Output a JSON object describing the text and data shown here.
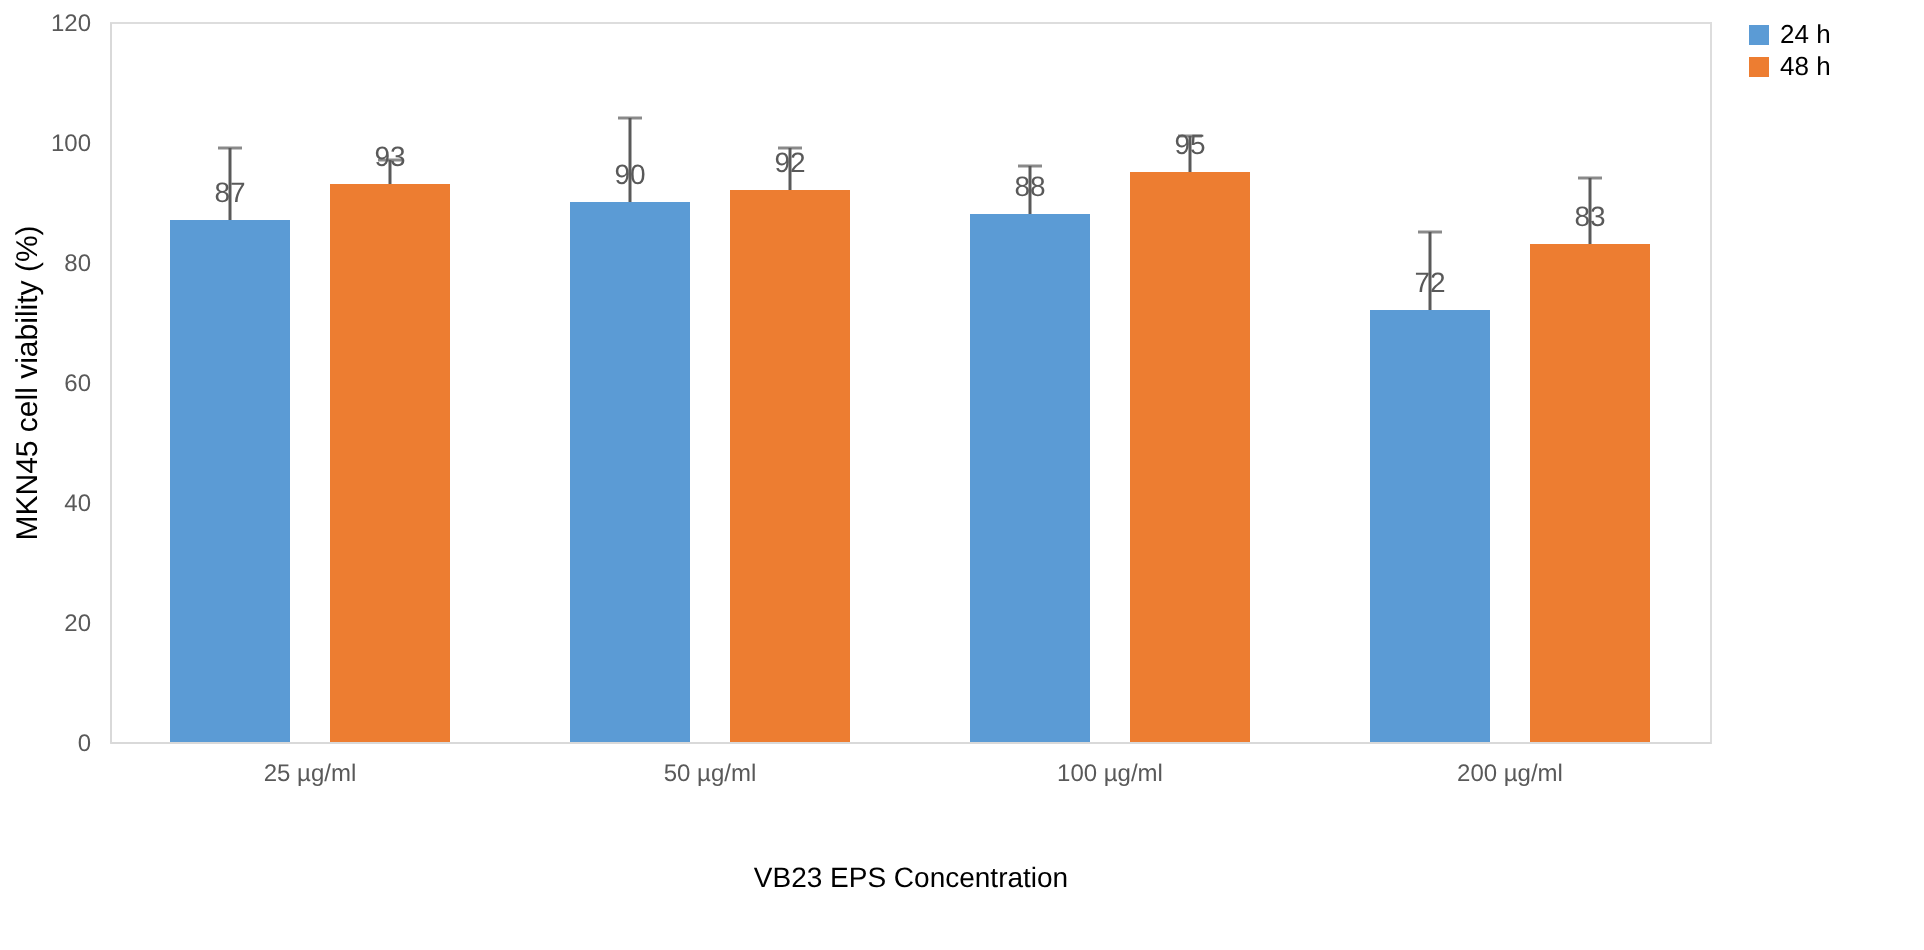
{
  "chart_data": {
    "type": "bar",
    "categories": [
      "25 µg/ml",
      "50 µg/ml",
      "100 µg/ml",
      "200 µg/ml"
    ],
    "series": [
      {
        "name": "24 h",
        "color": "#5b9bd5",
        "values": [
          87,
          90,
          88,
          72
        ],
        "errors": [
          [
            87,
            99
          ],
          [
            90,
            104
          ],
          [
            88,
            96
          ],
          [
            72,
            85
          ]
        ]
      },
      {
        "name": "48 h",
        "color": "#ed7d31",
        "values": [
          93,
          92,
          95,
          83
        ],
        "errors": [
          [
            93,
            97
          ],
          [
            92,
            99
          ],
          [
            95,
            101
          ],
          [
            83,
            94
          ]
        ]
      }
    ],
    "xlabel": "VB23 EPS Concentration",
    "ylabel": "MKN45 cell viability (%)",
    "ylim": [
      0,
      120
    ],
    "yticks": [
      0,
      20,
      40,
      60,
      80,
      100,
      120
    ],
    "grid": false,
    "legend": "right",
    "data_labels": true
  }
}
